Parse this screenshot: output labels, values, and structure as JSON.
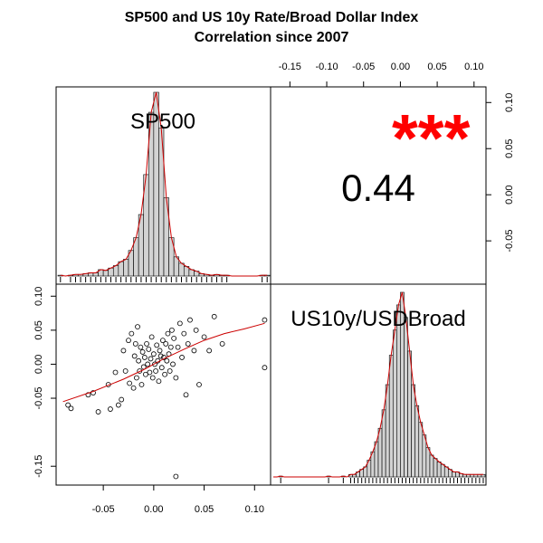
{
  "title_line1": "SP500 and US 10y Rate/Broad Dollar Index",
  "title_line2": "Correlation since 2007",
  "variables": [
    "SP500",
    "US10y/USDBroad"
  ],
  "correlation_text": "0.44",
  "significance_text": "***",
  "colors": {
    "smooth": "#cc0000",
    "stars": "#ff0000",
    "bars": "#d3d3d3"
  },
  "chart_data": [
    {
      "type": "bar",
      "panel": "diagonal-top-left",
      "title": "SP500",
      "bin_edges": [
        -0.095,
        -0.09,
        -0.085,
        -0.08,
        -0.075,
        -0.07,
        -0.065,
        -0.06,
        -0.055,
        -0.05,
        -0.045,
        -0.04,
        -0.035,
        -0.03,
        -0.025,
        -0.02,
        -0.015,
        -0.01,
        -0.005,
        0.0,
        0.005,
        0.01,
        0.015,
        0.02,
        0.025,
        0.03,
        0.035,
        0.04,
        0.045,
        0.05,
        0.055,
        0.06,
        0.065,
        0.07,
        0.075,
        0.08,
        0.085,
        0.09,
        0.095,
        0.1,
        0.105,
        0.11,
        0.115
      ],
      "density": [
        0.2,
        0,
        0.2,
        0.4,
        0.4,
        0.6,
        0.8,
        0.8,
        1.6,
        1.4,
        2,
        2.6,
        3.6,
        4.2,
        6.4,
        9.6,
        15.4,
        25.4,
        41,
        46,
        37,
        19.6,
        9.6,
        4.8,
        3.2,
        2.4,
        1.6,
        1.2,
        0.6,
        0.4,
        0.2,
        0.4,
        0.2,
        0.2,
        0,
        0,
        0,
        0,
        0,
        0,
        0.2,
        0.2
      ],
      "ylim": [
        0,
        46
      ]
    },
    {
      "type": "bar",
      "panel": "diagonal-bottom-right",
      "title": "US10y/USDBroad",
      "bin_edges": [
        -0.175,
        -0.17,
        -0.165,
        -0.16,
        -0.155,
        -0.15,
        -0.145,
        -0.14,
        -0.135,
        -0.13,
        -0.125,
        -0.12,
        -0.115,
        -0.11,
        -0.105,
        -0.1,
        -0.095,
        -0.09,
        -0.085,
        -0.08,
        -0.075,
        -0.07,
        -0.065,
        -0.06,
        -0.055,
        -0.05,
        -0.045,
        -0.04,
        -0.035,
        -0.03,
        -0.025,
        -0.02,
        -0.015,
        -0.01,
        -0.005,
        0.0,
        0.005,
        0.01,
        0.015,
        0.02,
        0.025,
        0.03,
        0.035,
        0.04,
        0.045,
        0.05,
        0.055,
        0.06,
        0.065,
        0.07,
        0.075,
        0.08,
        0.085,
        0.09,
        0.095,
        0.1,
        0.105,
        0.11,
        0.115
      ],
      "density": [
        0,
        0,
        0.1,
        0,
        0,
        0,
        0,
        0,
        0,
        0,
        0,
        0,
        0,
        0,
        0,
        0.1,
        0,
        0,
        0,
        0.1,
        0,
        0.3,
        0.3,
        0.6,
        0.9,
        1.2,
        2,
        3,
        4.2,
        5.8,
        8,
        11,
        14.5,
        17.5,
        20.5,
        22,
        19,
        15,
        11,
        8.5,
        6.5,
        5,
        3.5,
        2.6,
        2.2,
        1.8,
        1.5,
        1.2,
        0.9,
        0.6,
        0.6,
        0.4,
        0.3,
        0.3,
        0.3,
        0.3,
        0.3,
        0.3
      ],
      "ylim": [
        0,
        22
      ]
    },
    {
      "type": "scatter",
      "panel": "lower-left",
      "xlim": [
        -0.095,
        0.115
      ],
      "ylim": [
        -0.175,
        0.115
      ],
      "x_ticks": [
        -0.05,
        0.0,
        0.05,
        0.1
      ],
      "x_tick_labels": [
        "-0.05",
        "0.00",
        "0.05",
        "0.10"
      ],
      "y_ticks": [
        -0.15,
        -0.05,
        0.0,
        0.05,
        0.1
      ],
      "y_tick_labels": [
        "-0.15",
        "-0.05",
        "0.00",
        "0.05",
        "0.10"
      ],
      "points": [
        [
          -0.065,
          -0.045
        ],
        [
          -0.082,
          -0.065
        ],
        [
          -0.06,
          -0.042
        ],
        [
          -0.045,
          -0.03
        ],
        [
          -0.043,
          -0.066
        ],
        [
          -0.038,
          -0.012
        ],
        [
          -0.032,
          -0.052
        ],
        [
          -0.035,
          -0.06
        ],
        [
          -0.03,
          0.02
        ],
        [
          -0.028,
          -0.01
        ],
        [
          -0.025,
          0.035
        ],
        [
          -0.024,
          -0.028
        ],
        [
          -0.022,
          0.045
        ],
        [
          -0.02,
          -0.035
        ],
        [
          -0.019,
          0.012
        ],
        [
          -0.018,
          0.03
        ],
        [
          -0.017,
          -0.02
        ],
        [
          -0.016,
          0.055
        ],
        [
          -0.015,
          0.005
        ],
        [
          -0.014,
          -0.01
        ],
        [
          -0.013,
          0.025
        ],
        [
          -0.012,
          -0.03
        ],
        [
          -0.011,
          0.018
        ],
        [
          -0.01,
          -0.004
        ],
        [
          -0.009,
          0.01
        ],
        [
          -0.008,
          -0.015
        ],
        [
          -0.007,
          0.03
        ],
        [
          -0.006,
          0.0
        ],
        [
          -0.005,
          0.022
        ],
        [
          -0.004,
          -0.012
        ],
        [
          -0.003,
          0.008
        ],
        [
          -0.002,
          0.04
        ],
        [
          -0.001,
          -0.02
        ],
        [
          0.0,
          0.015
        ],
        [
          0.001,
          0.0
        ],
        [
          0.002,
          -0.01
        ],
        [
          0.003,
          0.028
        ],
        [
          0.004,
          0.005
        ],
        [
          0.005,
          -0.025
        ],
        [
          0.006,
          0.02
        ],
        [
          0.007,
          0.012
        ],
        [
          0.008,
          -0.005
        ],
        [
          0.009,
          0.035
        ],
        [
          0.01,
          0.01
        ],
        [
          0.011,
          -0.015
        ],
        [
          0.012,
          0.03
        ],
        [
          0.013,
          0.005
        ],
        [
          0.014,
          0.045
        ],
        [
          0.015,
          0.015
        ],
        [
          0.016,
          -0.01
        ],
        [
          0.017,
          0.025
        ],
        [
          0.018,
          0.05
        ],
        [
          0.019,
          0.0
        ],
        [
          0.02,
          0.038
        ],
        [
          0.022,
          -0.02
        ],
        [
          0.024,
          0.025
        ],
        [
          0.026,
          0.06
        ],
        [
          0.028,
          0.01
        ],
        [
          0.03,
          0.045
        ],
        [
          0.032,
          -0.045
        ],
        [
          0.034,
          0.03
        ],
        [
          0.036,
          0.065
        ],
        [
          0.04,
          0.02
        ],
        [
          0.042,
          0.05
        ],
        [
          0.045,
          -0.03
        ],
        [
          0.05,
          0.04
        ],
        [
          0.055,
          0.02
        ],
        [
          0.06,
          0.07
        ],
        [
          0.068,
          0.03
        ],
        [
          0.11,
          0.065
        ],
        [
          0.11,
          -0.005
        ],
        [
          0.022,
          -0.165
        ],
        [
          -0.085,
          -0.06
        ],
        [
          -0.055,
          -0.07
        ]
      ],
      "smooth_line": [
        [
          -0.09,
          -0.055
        ],
        [
          -0.06,
          -0.04
        ],
        [
          -0.03,
          -0.022
        ],
        [
          -0.01,
          -0.008
        ],
        [
          0.0,
          0.0
        ],
        [
          0.01,
          0.008
        ],
        [
          0.03,
          0.022
        ],
        [
          0.05,
          0.035
        ],
        [
          0.07,
          0.045
        ],
        [
          0.09,
          0.052
        ],
        [
          0.11,
          0.06
        ]
      ]
    },
    {
      "type": "table",
      "panel": "upper-right",
      "correlation": 0.44,
      "x_ticks": [
        -0.15,
        -0.1,
        -0.05,
        0.0,
        0.05,
        0.1
      ],
      "x_tick_labels": [
        "-0.15",
        "-0.10",
        "-0.05",
        "0.00",
        "0.05",
        "0.10"
      ],
      "y_ticks": [
        -0.05,
        0.0,
        0.05,
        0.1
      ],
      "y_tick_labels": [
        "-0.05",
        "0.00",
        "0.05",
        "0.10"
      ]
    }
  ]
}
